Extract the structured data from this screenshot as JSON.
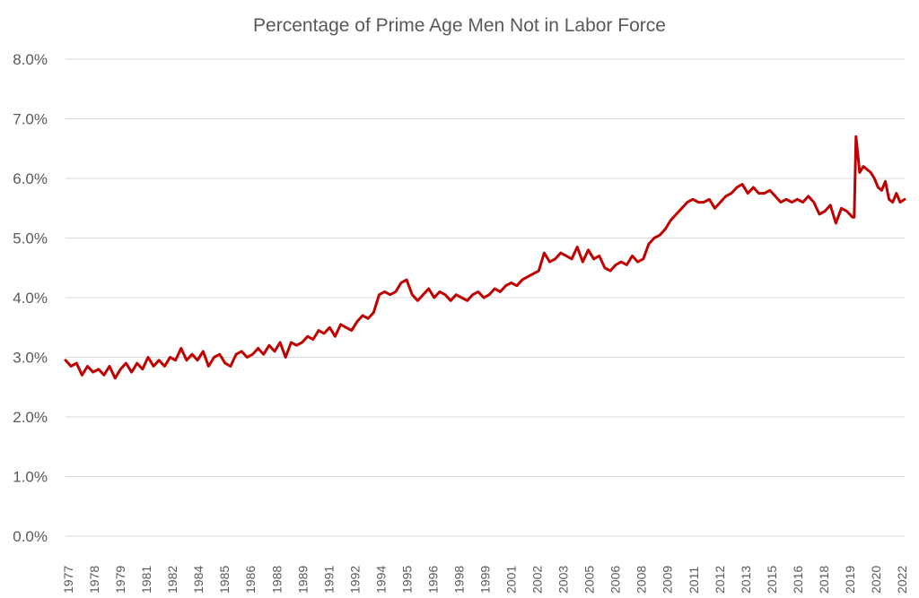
{
  "chart_data": {
    "type": "line",
    "title": "Percentage of Prime Age Men Not in Labor Force",
    "xlabel": "",
    "ylabel": "",
    "ylim": [
      0,
      8
    ],
    "xlim": [
      1977.0,
      2022.75
    ],
    "grid": true,
    "legend": "none",
    "y_ticks": [
      "0.0%",
      "1.0%",
      "2.0%",
      "3.0%",
      "4.0%",
      "5.0%",
      "6.0%",
      "7.0%",
      "8.0%"
    ],
    "x_ticks": [
      1977,
      1978,
      1979,
      1981,
      1982,
      1984,
      1985,
      1986,
      1988,
      1989,
      1991,
      1992,
      1994,
      1995,
      1996,
      1998,
      1999,
      2001,
      2002,
      2003,
      2005,
      2006,
      2008,
      2009,
      2011,
      2012,
      2013,
      2015,
      2016,
      2018,
      2019,
      2020,
      2022
    ],
    "series": [
      {
        "color": "#c00000",
        "x": [
          1977.0,
          1977.3,
          1977.6,
          1977.9,
          1978.2,
          1978.5,
          1978.8,
          1979.1,
          1979.4,
          1979.7,
          1980.0,
          1980.3,
          1980.6,
          1980.9,
          1981.2,
          1981.5,
          1981.8,
          1982.1,
          1982.4,
          1982.7,
          1983.0,
          1983.3,
          1983.6,
          1983.9,
          1984.2,
          1984.5,
          1984.8,
          1985.1,
          1985.4,
          1985.7,
          1986.0,
          1986.3,
          1986.6,
          1986.9,
          1987.2,
          1987.5,
          1987.8,
          1988.1,
          1988.4,
          1988.7,
          1989.0,
          1989.3,
          1989.6,
          1989.9,
          1990.2,
          1990.5,
          1990.8,
          1991.1,
          1991.4,
          1991.7,
          1992.0,
          1992.3,
          1992.6,
          1992.9,
          1993.2,
          1993.5,
          1993.8,
          1994.1,
          1994.4,
          1994.7,
          1995.0,
          1995.3,
          1995.6,
          1995.9,
          1996.2,
          1996.5,
          1996.8,
          1997.1,
          1997.4,
          1997.7,
          1998.0,
          1998.3,
          1998.6,
          1998.9,
          1999.2,
          1999.5,
          1999.8,
          2000.1,
          2000.4,
          2000.7,
          2001.0,
          2001.3,
          2001.6,
          2001.9,
          2002.2,
          2002.5,
          2002.8,
          2003.1,
          2003.4,
          2003.7,
          2004.0,
          2004.3,
          2004.6,
          2004.9,
          2005.2,
          2005.5,
          2005.8,
          2006.1,
          2006.4,
          2006.7,
          2007.0,
          2007.3,
          2007.6,
          2007.9,
          2008.2,
          2008.5,
          2008.8,
          2009.1,
          2009.4,
          2009.7,
          2010.0,
          2010.3,
          2010.6,
          2010.9,
          2011.2,
          2011.5,
          2011.8,
          2012.1,
          2012.4,
          2012.7,
          2013.0,
          2013.3,
          2013.6,
          2013.9,
          2014.2,
          2014.5,
          2014.8,
          2015.1,
          2015.4,
          2015.7,
          2016.0,
          2016.3,
          2016.6,
          2016.9,
          2017.2,
          2017.5,
          2017.8,
          2018.1,
          2018.4,
          2018.7,
          2019.0,
          2019.3,
          2019.6,
          2019.9,
          2020.0,
          2020.1,
          2020.3,
          2020.5,
          2020.7,
          2020.9,
          2021.1,
          2021.3,
          2021.5,
          2021.7,
          2021.9,
          2022.1,
          2022.3,
          2022.5,
          2022.75
        ],
        "y": [
          2.95,
          2.85,
          2.9,
          2.7,
          2.85,
          2.75,
          2.8,
          2.7,
          2.85,
          2.65,
          2.8,
          2.9,
          2.75,
          2.9,
          2.8,
          3.0,
          2.85,
          2.95,
          2.85,
          3.0,
          2.95,
          3.15,
          2.95,
          3.05,
          2.95,
          3.1,
          2.85,
          3.0,
          3.05,
          2.9,
          2.85,
          3.05,
          3.1,
          3.0,
          3.05,
          3.15,
          3.05,
          3.2,
          3.1,
          3.25,
          3.0,
          3.25,
          3.2,
          3.25,
          3.35,
          3.3,
          3.45,
          3.4,
          3.5,
          3.35,
          3.55,
          3.5,
          3.45,
          3.6,
          3.7,
          3.65,
          3.75,
          4.05,
          4.1,
          4.05,
          4.1,
          4.25,
          4.3,
          4.05,
          3.95,
          4.05,
          4.15,
          4.0,
          4.1,
          4.05,
          3.95,
          4.05,
          4.0,
          3.95,
          4.05,
          4.1,
          4.0,
          4.05,
          4.15,
          4.1,
          4.2,
          4.25,
          4.2,
          4.3,
          4.35,
          4.4,
          4.45,
          4.75,
          4.6,
          4.65,
          4.75,
          4.7,
          4.65,
          4.85,
          4.6,
          4.8,
          4.65,
          4.7,
          4.5,
          4.45,
          4.55,
          4.6,
          4.55,
          4.7,
          4.6,
          4.65,
          4.9,
          5.0,
          5.05,
          5.15,
          5.3,
          5.4,
          5.5,
          5.6,
          5.65,
          5.6,
          5.6,
          5.65,
          5.5,
          5.6,
          5.7,
          5.75,
          5.85,
          5.9,
          5.75,
          5.85,
          5.75,
          5.75,
          5.8,
          5.7,
          5.6,
          5.65,
          5.6,
          5.65,
          5.6,
          5.7,
          5.6,
          5.4,
          5.45,
          5.55,
          5.25,
          5.5,
          5.45,
          5.35,
          5.35,
          6.7,
          6.1,
          6.2,
          6.15,
          6.1,
          6.0,
          5.85,
          5.8,
          5.95,
          5.65,
          5.6,
          5.75,
          5.6,
          5.65
        ]
      }
    ]
  }
}
